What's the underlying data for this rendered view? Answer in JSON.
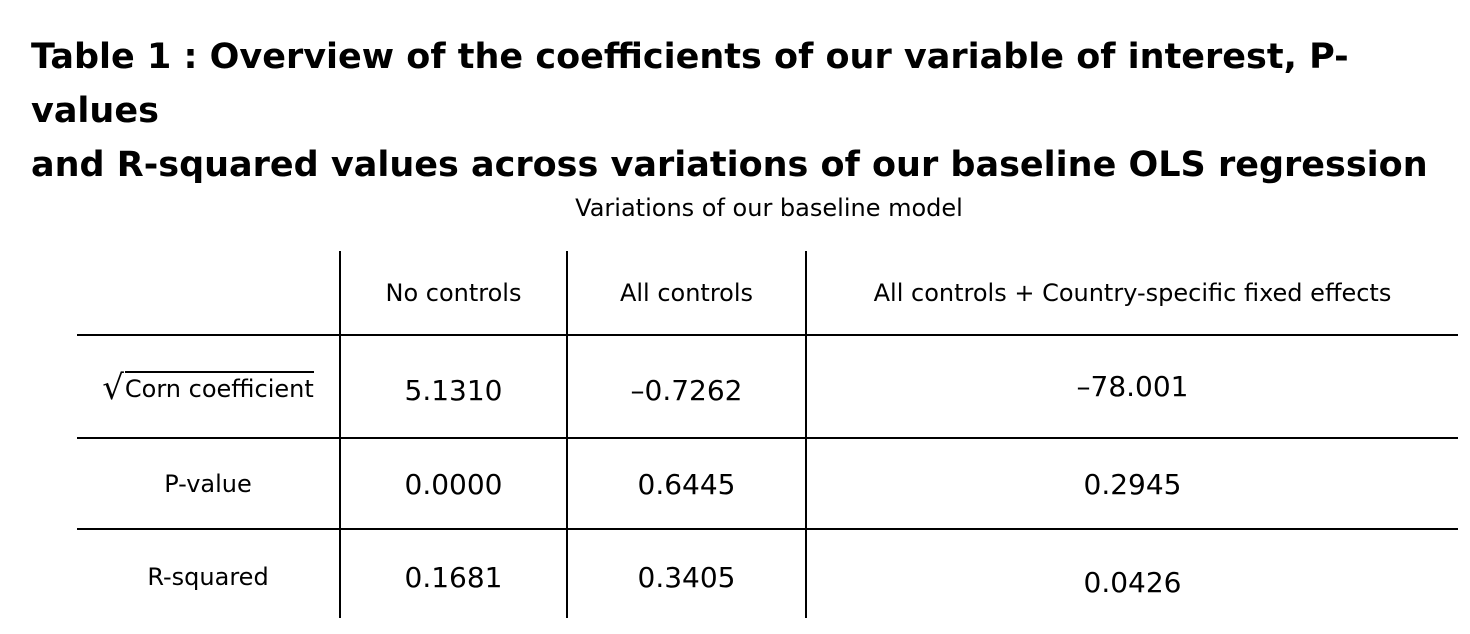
{
  "title": {
    "line1": "Table 1 : Overview of the coefficients of our variable of interest, P-values",
    "line2": "and R-squared values across variations of our baseline OLS regression"
  },
  "table": {
    "caption": "Variations of our baseline model",
    "columns": [
      "No controls",
      "All controls",
      "All controls + Country-specific fixed effects"
    ],
    "rows": [
      {
        "label_symbol": "√",
        "label": "Corn coefficient",
        "values": [
          "5.1310",
          "–0.7262",
          "–78.001"
        ]
      },
      {
        "label": "P-value",
        "values": [
          "0.0000",
          "0.6445",
          "0.2945"
        ]
      },
      {
        "label": "R-squared",
        "values": [
          "0.1681",
          "0.3405",
          "0.0426"
        ]
      }
    ]
  }
}
